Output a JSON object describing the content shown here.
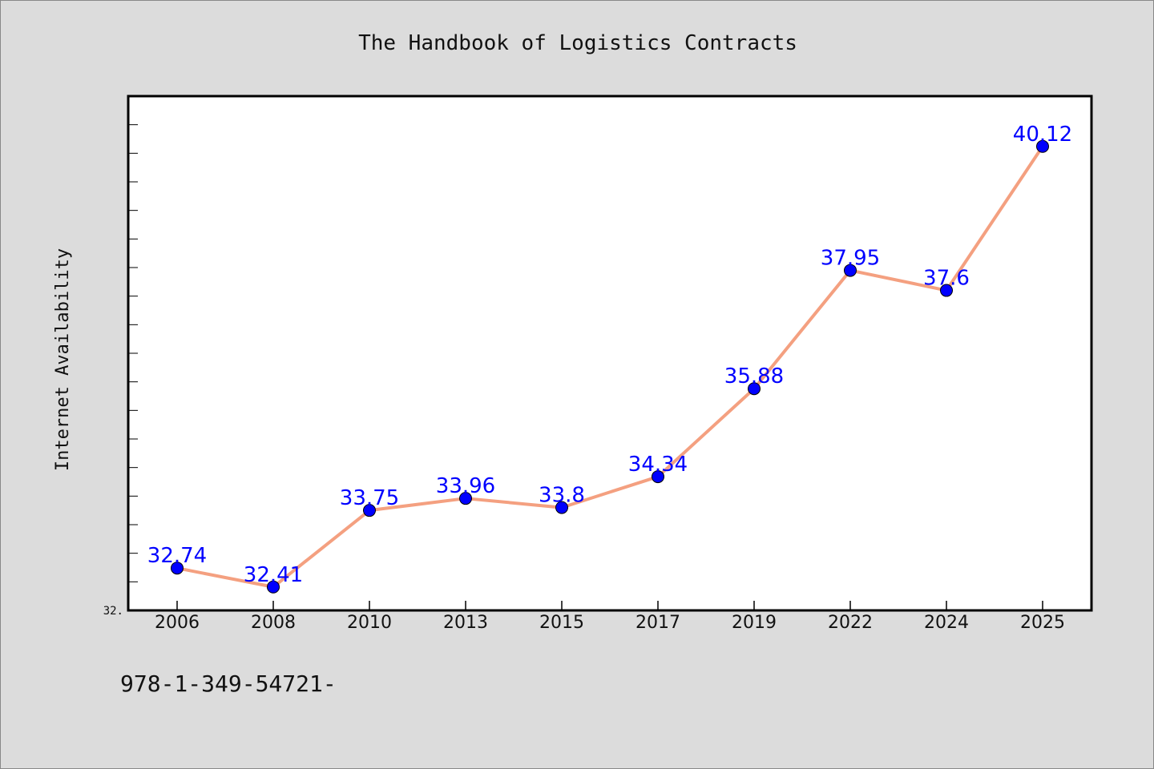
{
  "chart_data": {
    "type": "line",
    "title": "The Handbook of Logistics Contracts",
    "ylabel": "Internet Availability",
    "xlabel": "",
    "categories": [
      "2006",
      "2008",
      "2010",
      "2013",
      "2015",
      "2017",
      "2019",
      "2022",
      "2024",
      "2025"
    ],
    "series": [
      {
        "values": [
          32.74,
          32.41,
          33.75,
          33.96,
          33.8,
          34.34,
          35.88,
          37.95,
          37.6,
          40.12
        ],
        "data_labels": [
          "32.74",
          "32.41",
          "33.75",
          "33.96",
          "33.8",
          "34.34",
          "35.88",
          "37.95",
          "37.6",
          "40.12"
        ],
        "line_color": "#f4a080",
        "marker_color": "#0000ff",
        "label_color": "#0000ff"
      }
    ],
    "ylim": [
      32.0,
      41.0
    ],
    "y_tick_label": "32.",
    "grid": false
  },
  "footer_text": "978-1-349-54721-",
  "colors": {
    "background": "#dcdcdc",
    "plot_background": "#ffffff",
    "axis": "#000000"
  }
}
